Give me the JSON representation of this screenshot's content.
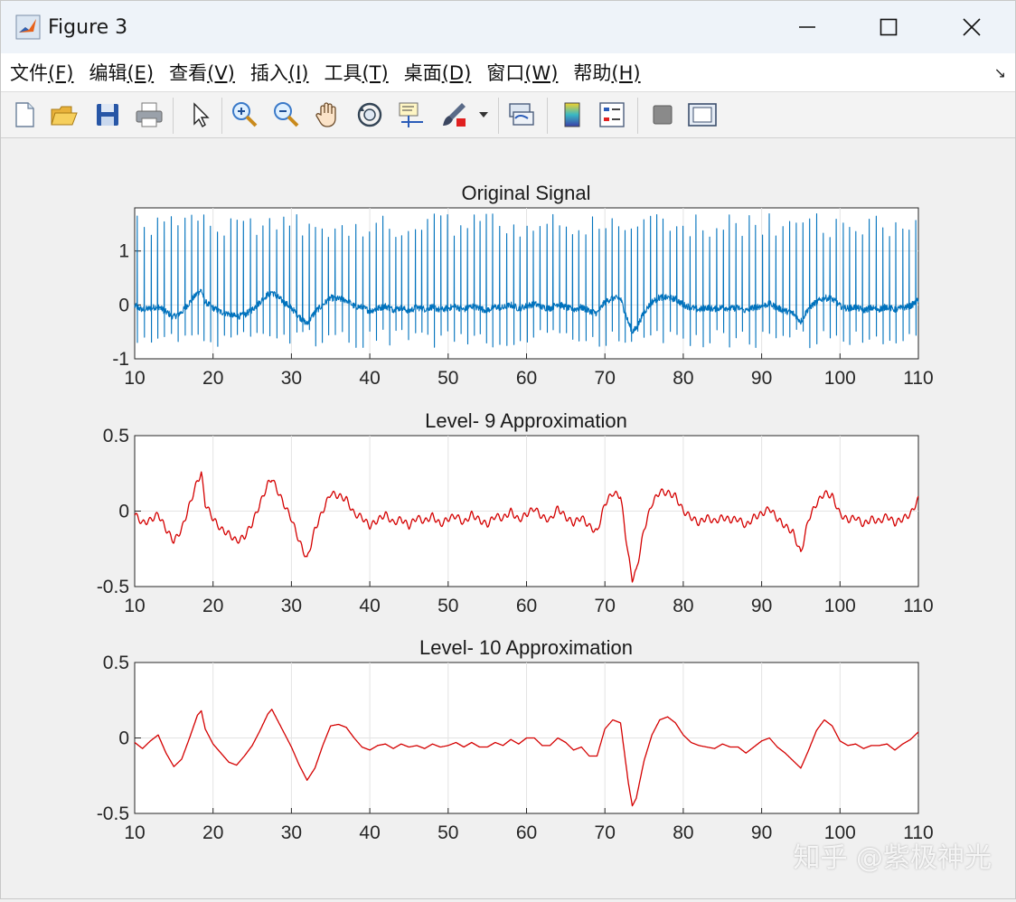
{
  "window": {
    "title": "Figure 3"
  },
  "menu": {
    "items": [
      {
        "text": "文件",
        "key": "(F)"
      },
      {
        "text": "编辑",
        "key": "(E)"
      },
      {
        "text": "查看",
        "key": "(V)"
      },
      {
        "text": "插入",
        "key": "(I)"
      },
      {
        "text": "工具",
        "key": "(T)"
      },
      {
        "text": "桌面",
        "key": "(D)"
      },
      {
        "text": "窗口",
        "key": "(W)"
      },
      {
        "text": "帮助",
        "key": "(H)"
      }
    ]
  },
  "toolbar": {
    "icons": [
      "new-figure-icon",
      "open-file-icon",
      "save-icon",
      "print-icon",
      "pointer-icon",
      "zoom-in-icon",
      "zoom-out-icon",
      "pan-hand-icon",
      "rotate-3d-icon",
      "data-cursor-icon",
      "brush-icon",
      "link-plot-icon",
      "colorbar-icon",
      "legend-icon",
      "hide-plot-tools-icon",
      "show-plot-tools-icon"
    ]
  },
  "colors": {
    "original": "#0072bd",
    "approx": "#d40000",
    "grid": "#e3e3e3"
  },
  "chart_data": [
    {
      "type": "line",
      "title": "Original Signal",
      "xlim": [
        10,
        110
      ],
      "ylim": [
        -1,
        1.8
      ],
      "xticks": [
        10,
        20,
        30,
        40,
        50,
        60,
        70,
        80,
        90,
        100,
        110
      ],
      "yticks": [
        -1,
        0,
        1
      ],
      "ytick_labels": [
        "-1",
        "0",
        "1"
      ],
      "grid": true,
      "series": [
        {
          "color": "#0072bd",
          "description": "ECG-like signal with regular sharp spikes near 1.4 and baseline wander"
        }
      ]
    },
    {
      "type": "line",
      "title": "Level- 9 Approximation",
      "xlim": [
        10,
        110
      ],
      "ylim": [
        -0.5,
        0.5
      ],
      "xticks": [
        10,
        20,
        30,
        40,
        50,
        60,
        70,
        80,
        90,
        100,
        110
      ],
      "yticks": [
        -0.5,
        0,
        0.5
      ],
      "ytick_labels": [
        "-0.5",
        "0",
        "0.5"
      ],
      "grid": true,
      "x": [
        10,
        11,
        12,
        13,
        14,
        15,
        16,
        17,
        18,
        18.5,
        19,
        20,
        21,
        22,
        23,
        24,
        25,
        26,
        27,
        27.5,
        28,
        29,
        30,
        31,
        32,
        33,
        34,
        35,
        36,
        37,
        38,
        39,
        40,
        41,
        42,
        43,
        44,
        45,
        46,
        47,
        48,
        49,
        50,
        51,
        52,
        53,
        54,
        55,
        56,
        57,
        58,
        59,
        60,
        61,
        62,
        63,
        64,
        65,
        66,
        67,
        68,
        69,
        70,
        71,
        72,
        73,
        73.5,
        74,
        75,
        76,
        77,
        78,
        79,
        80,
        81,
        82,
        83,
        84,
        85,
        86,
        87,
        88,
        89,
        90,
        91,
        92,
        93,
        94,
        95,
        96,
        97,
        98,
        99,
        100,
        101,
        102,
        103,
        104,
        105,
        106,
        107,
        108,
        109,
        110
      ],
      "y": [
        -0.02,
        -0.08,
        -0.06,
        -0.02,
        -0.12,
        -0.2,
        -0.12,
        0.04,
        0.2,
        0.25,
        0.05,
        -0.05,
        -0.12,
        -0.15,
        -0.2,
        -0.17,
        -0.08,
        0.05,
        0.18,
        0.22,
        0.16,
        0.05,
        -0.05,
        -0.2,
        -0.32,
        -0.12,
        0.0,
        0.12,
        0.1,
        0.08,
        -0.02,
        -0.04,
        -0.1,
        -0.06,
        -0.02,
        -0.08,
        -0.05,
        -0.1,
        -0.04,
        -0.07,
        -0.03,
        -0.09,
        -0.05,
        -0.03,
        -0.08,
        -0.02,
        -0.06,
        -0.09,
        -0.03,
        -0.05,
        0.0,
        -0.06,
        -0.02,
        0.02,
        -0.04,
        -0.06,
        0.02,
        -0.04,
        -0.08,
        -0.04,
        -0.1,
        -0.14,
        0.05,
        0.12,
        0.1,
        -0.3,
        -0.45,
        -0.4,
        -0.12,
        0.05,
        0.13,
        0.12,
        0.1,
        0.0,
        -0.04,
        -0.08,
        -0.04,
        -0.07,
        -0.04,
        -0.06,
        -0.05,
        -0.1,
        -0.04,
        -0.02,
        0.02,
        -0.05,
        -0.1,
        -0.14,
        -0.28,
        -0.05,
        0.05,
        0.12,
        0.1,
        -0.02,
        -0.06,
        -0.04,
        -0.09,
        -0.05,
        -0.07,
        -0.03,
        -0.08,
        -0.05,
        -0.02,
        0.08
      ]
    },
    {
      "type": "line",
      "title": "Level- 10 Approximation",
      "xlim": [
        10,
        110
      ],
      "ylim": [
        -0.5,
        0.5
      ],
      "xticks": [
        10,
        20,
        30,
        40,
        50,
        60,
        70,
        80,
        90,
        100,
        110
      ],
      "yticks": [
        -0.5,
        0,
        0.5
      ],
      "ytick_labels": [
        "-0.5",
        "0",
        "0.5"
      ],
      "grid": true,
      "x": [
        10,
        11,
        12,
        13,
        14,
        15,
        16,
        17,
        18,
        18.5,
        19,
        20,
        21,
        22,
        23,
        24,
        25,
        26,
        27,
        27.5,
        28,
        29,
        30,
        31,
        32,
        33,
        34,
        35,
        36,
        37,
        38,
        39,
        40,
        41,
        42,
        43,
        44,
        45,
        46,
        47,
        48,
        49,
        50,
        51,
        52,
        53,
        54,
        55,
        56,
        57,
        58,
        59,
        60,
        61,
        62,
        63,
        64,
        65,
        66,
        67,
        68,
        69,
        70,
        71,
        72,
        73,
        73.5,
        74,
        75,
        76,
        77,
        78,
        79,
        80,
        81,
        82,
        83,
        84,
        85,
        86,
        87,
        88,
        89,
        90,
        91,
        92,
        93,
        94,
        95,
        96,
        97,
        98,
        99,
        100,
        101,
        102,
        103,
        104,
        105,
        106,
        107,
        108,
        109,
        110
      ],
      "y": [
        -0.03,
        -0.07,
        -0.02,
        0.02,
        -0.1,
        -0.19,
        -0.14,
        0.0,
        0.15,
        0.18,
        0.06,
        -0.04,
        -0.1,
        -0.16,
        -0.18,
        -0.12,
        -0.05,
        0.05,
        0.16,
        0.19,
        0.14,
        0.04,
        -0.06,
        -0.18,
        -0.28,
        -0.2,
        -0.05,
        0.08,
        0.09,
        0.07,
        0.0,
        -0.06,
        -0.08,
        -0.05,
        -0.04,
        -0.07,
        -0.04,
        -0.06,
        -0.05,
        -0.07,
        -0.04,
        -0.06,
        -0.05,
        -0.03,
        -0.06,
        -0.03,
        -0.06,
        -0.06,
        -0.03,
        -0.05,
        -0.01,
        -0.04,
        0.0,
        0.0,
        -0.05,
        -0.05,
        0.0,
        -0.03,
        -0.08,
        -0.06,
        -0.12,
        -0.12,
        0.06,
        0.12,
        0.1,
        -0.3,
        -0.45,
        -0.4,
        -0.15,
        0.02,
        0.12,
        0.14,
        0.1,
        0.02,
        -0.03,
        -0.05,
        -0.06,
        -0.07,
        -0.04,
        -0.06,
        -0.06,
        -0.1,
        -0.06,
        -0.02,
        0.0,
        -0.06,
        -0.1,
        -0.15,
        -0.2,
        -0.08,
        0.05,
        0.12,
        0.08,
        -0.02,
        -0.05,
        -0.04,
        -0.07,
        -0.05,
        -0.05,
        -0.04,
        -0.08,
        -0.04,
        -0.01,
        0.04
      ]
    }
  ],
  "watermark": "知乎 @紫极神光"
}
